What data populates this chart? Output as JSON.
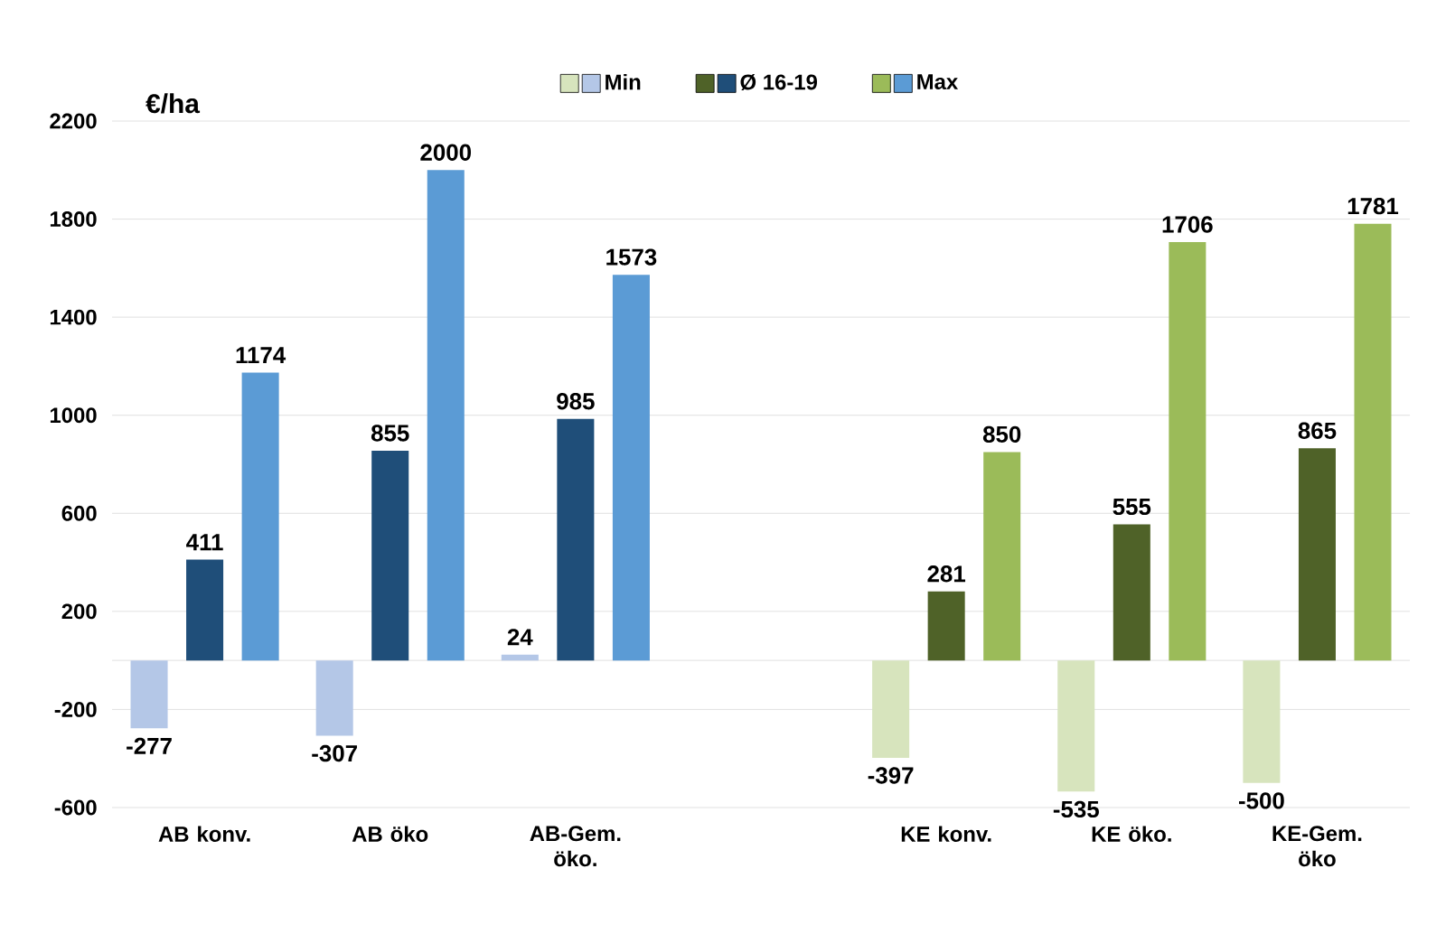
{
  "chart_data": {
    "type": "bar",
    "ylabel": "€/ha",
    "categories": [
      "AB konv.",
      "AB öko",
      "AB-Gem. öko.",
      null,
      "KE konv.",
      "KE öko.",
      "KE-Gem. öko"
    ],
    "series": [
      {
        "name": "Min",
        "colors": [
          "#b4c7e7",
          "#b4c7e7",
          "#b4c7e7",
          null,
          "#d7e4bd",
          "#d7e4bd",
          "#d7e4bd"
        ],
        "values": [
          -277,
          -307,
          24,
          null,
          -397,
          -535,
          -500
        ]
      },
      {
        "name": "Ø  16-19",
        "colors": [
          "#1f4e79",
          "#1f4e79",
          "#1f4e79",
          null,
          "#4f6228",
          "#4f6228",
          "#4f6228"
        ],
        "values": [
          411,
          855,
          985,
          null,
          281,
          555,
          865
        ]
      },
      {
        "name": "Max",
        "colors": [
          "#5b9bd5",
          "#5b9bd5",
          "#5b9bd5",
          null,
          "#9bbb59",
          "#9bbb59",
          "#9bbb59"
        ],
        "values": [
          1174,
          2000,
          1573,
          null,
          850,
          1706,
          1781
        ]
      }
    ],
    "ylim": [
      -600,
      2200
    ],
    "yticks": [
      -600,
      -200,
      200,
      600,
      1000,
      1400,
      1800,
      2200
    ],
    "grid": "y",
    "legend": "top",
    "data_labels": true
  }
}
